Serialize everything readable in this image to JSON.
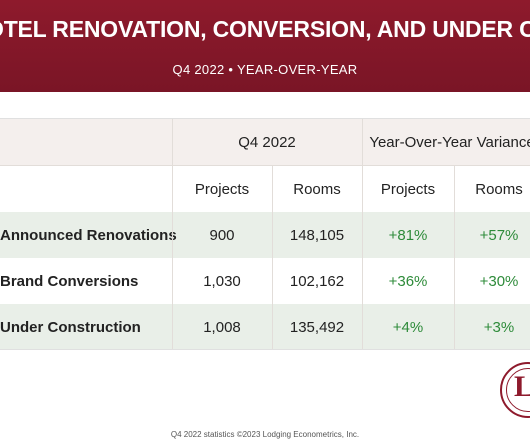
{
  "banner": {
    "title": "OTEL RENOVATION, CONVERSION, AND UNDER CONSTRUCTION",
    "subtitle": "Q4 2022 • YEAR-OVER-YEAR"
  },
  "table": {
    "group_headers": {
      "period": "Q4 2022",
      "variance": "Year-Over-Year Variance"
    },
    "columns": {
      "projects": "Projects",
      "rooms": "Rooms",
      "var_projects": "Projects",
      "var_rooms": "Rooms"
    },
    "rows": [
      {
        "label": "Announced Renovations",
        "projects": "900",
        "rooms": "148,105",
        "var_projects": "+81%",
        "var_rooms": "+57%"
      },
      {
        "label": "Brand Conversions",
        "projects": "1,030",
        "rooms": "102,162",
        "var_projects": "+36%",
        "var_rooms": "+30%"
      },
      {
        "label": "Under Construction",
        "projects": "1,008",
        "rooms": "135,492",
        "var_projects": "+4%",
        "var_rooms": "+3%"
      }
    ]
  },
  "logo": {
    "letter": "L"
  },
  "colors": {
    "brand": "#8e1a2c",
    "positive": "#2e8b3a",
    "row_shade": "#e9efe8",
    "header_band": "#f4efed"
  },
  "footer": {
    "text": "Q4 2022 statistics ©2023 Lodging Econometrics, Inc."
  }
}
